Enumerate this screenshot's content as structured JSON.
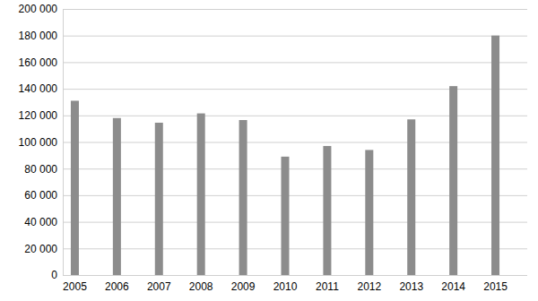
{
  "chart_data": {
    "type": "bar",
    "categories": [
      "2005",
      "2006",
      "2007",
      "2008",
      "2009",
      "2010",
      "2011",
      "2012",
      "2013",
      "2014",
      "2015"
    ],
    "values": [
      131000,
      118000,
      114500,
      121500,
      116500,
      89000,
      97000,
      94000,
      117000,
      142000,
      180000
    ],
    "color": "#8c8c8c",
    "ylim": [
      0,
      200000
    ],
    "yticks": [
      0,
      {
        "value": 20000,
        "label": "20 000"
      },
      {
        "value": 40000,
        "label": "40 000"
      },
      {
        "value": 60000,
        "label": "60 000"
      },
      {
        "value": 80000,
        "label": "80 000"
      },
      {
        "value": 100000,
        "label": "100 000"
      },
      {
        "value": 120000,
        "label": "120 000"
      },
      {
        "value": 140000,
        "label": "140 000"
      },
      {
        "value": 160000,
        "label": "160 000"
      },
      {
        "value": 180000,
        "label": "180 000"
      },
      {
        "value": 200000,
        "label": "200 000"
      }
    ],
    "grid": true
  }
}
